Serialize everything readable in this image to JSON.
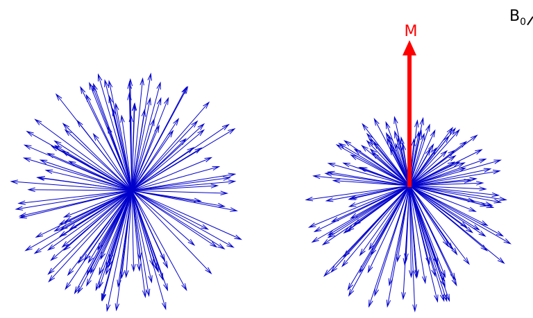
{
  "labels": {
    "field": "B",
    "field_subscript": "0",
    "magnetization": "M"
  }
}
